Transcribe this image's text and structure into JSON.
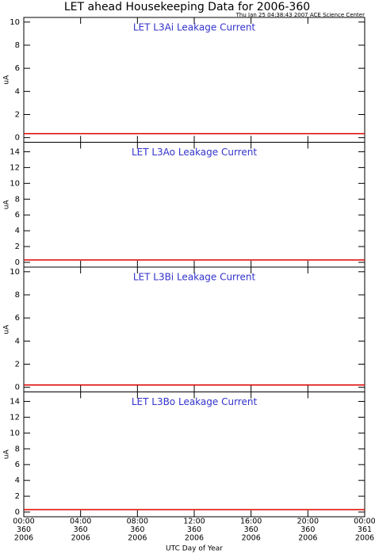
{
  "title": "LET ahead Housekeeping Data for 2006-360",
  "timestamp": "Thu Jan 25 04:38:43 2007 ACE Science Center",
  "x_axis": {
    "label": "UTC Day of Year",
    "xlim": [
      0,
      24
    ],
    "xticks": [
      {
        "value": 0,
        "label": [
          "00:00",
          "360",
          "2006"
        ]
      },
      {
        "value": 4,
        "label": [
          "04:00",
          "360",
          "2006"
        ]
      },
      {
        "value": 8,
        "label": [
          "08:00",
          "360",
          "2006"
        ]
      },
      {
        "value": 12,
        "label": [
          "12:00",
          "360",
          "2006"
        ]
      },
      {
        "value": 16,
        "label": [
          "16:00",
          "360",
          "2006"
        ]
      },
      {
        "value": 20,
        "label": [
          "20:00",
          "360",
          "2006"
        ]
      },
      {
        "value": 24,
        "label": [
          "00:00",
          "361",
          "2006"
        ]
      }
    ]
  },
  "chart_data": [
    {
      "type": "line",
      "title": "LET L3Ai Leakage Current",
      "ylabel": "uA",
      "ylim": [
        -0.4,
        10.4
      ],
      "yticks": [
        0,
        2,
        4,
        6,
        8,
        10
      ],
      "x": [
        0,
        24
      ],
      "series": [
        {
          "name": "L3Ai",
          "color": "#e00000",
          "values": [
            0.35,
            0.35
          ]
        }
      ]
    },
    {
      "type": "line",
      "title": "LET L3Ao Leakage Current",
      "ylabel": "uA",
      "ylim": [
        -0.6,
        15.2
      ],
      "yticks": [
        0,
        2,
        4,
        6,
        8,
        10,
        12,
        14
      ],
      "x": [
        0,
        24
      ],
      "series": [
        {
          "name": "L3Ao",
          "color": "#e00000",
          "values": [
            0.3,
            0.3
          ]
        }
      ]
    },
    {
      "type": "line",
      "title": "LET L3Bi Leakage Current",
      "ylabel": "uA",
      "ylim": [
        -0.4,
        10.4
      ],
      "yticks": [
        0,
        2,
        4,
        6,
        8,
        10
      ],
      "x": [
        0,
        24
      ],
      "series": [
        {
          "name": "L3Bi",
          "color": "#e00000",
          "values": [
            0.2,
            0.2
          ]
        }
      ]
    },
    {
      "type": "line",
      "title": "LET L3Bo Leakage Current",
      "ylabel": "uA",
      "ylim": [
        -0.6,
        15.2
      ],
      "yticks": [
        0,
        2,
        4,
        6,
        8,
        10,
        12,
        14
      ],
      "x": [
        0,
        24
      ],
      "series": [
        {
          "name": "L3Bo",
          "color": "#e00000",
          "values": [
            0.3,
            0.3
          ]
        }
      ]
    }
  ]
}
